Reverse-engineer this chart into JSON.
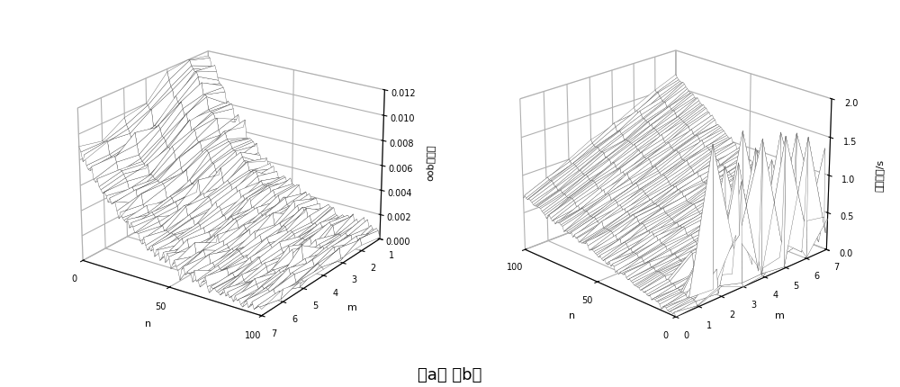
{
  "zlim_a": [
    0,
    0.012
  ],
  "zlim_b": [
    0,
    2.0
  ],
  "zticks_a": [
    0,
    0.002,
    0.004,
    0.006,
    0.008,
    0.01,
    0.012
  ],
  "zticks_b": [
    0,
    0.5,
    1.0,
    1.5,
    2.0
  ],
  "xlabel": "n",
  "ylabel": "m",
  "zlabel_a": "oob误分率",
  "zlabel_b": "训练时间/s",
  "label_ab": "（a） （b）",
  "n_ticks_a": [
    0,
    50,
    100
  ],
  "m_ticks_a": [
    1,
    2,
    3,
    4,
    5,
    6,
    7
  ],
  "n_ticks_b": [
    0,
    50,
    100
  ],
  "m_ticks_b": [
    0,
    1,
    2,
    3,
    4,
    5,
    6,
    7
  ],
  "bg_color": "#ffffff",
  "elev_a": 22,
  "azim_a": -55,
  "elev_b": 22,
  "azim_b": -45
}
